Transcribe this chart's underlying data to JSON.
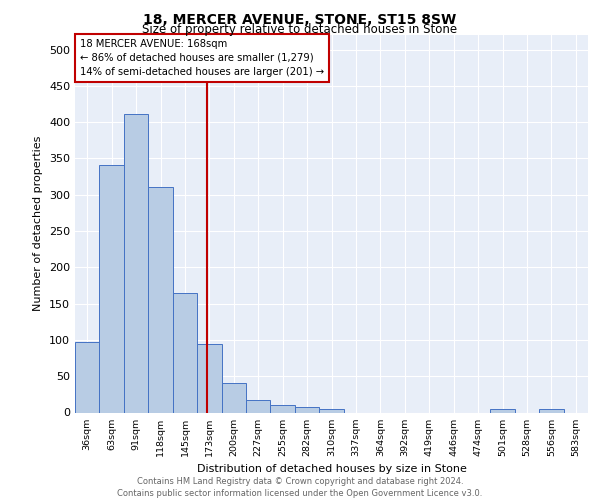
{
  "title1": "18, MERCER AVENUE, STONE, ST15 8SW",
  "title2": "Size of property relative to detached houses in Stone",
  "xlabel": "Distribution of detached houses by size in Stone",
  "ylabel": "Number of detached properties",
  "bin_labels": [
    "36sqm",
    "63sqm",
    "91sqm",
    "118sqm",
    "145sqm",
    "173sqm",
    "200sqm",
    "227sqm",
    "255sqm",
    "282sqm",
    "310sqm",
    "337sqm",
    "364sqm",
    "392sqm",
    "419sqm",
    "446sqm",
    "474sqm",
    "501sqm",
    "528sqm",
    "556sqm",
    "583sqm"
  ],
  "bar_heights": [
    97,
    341,
    411,
    310,
    164,
    94,
    41,
    17,
    10,
    8,
    5,
    0,
    0,
    0,
    0,
    0,
    0,
    5,
    0,
    5,
    0
  ],
  "bar_color": "#b8cce4",
  "bar_edge_color": "#4472c4",
  "property_label": "18 MERCER AVENUE: 168sqm",
  "annotation_line1": "← 86% of detached houses are smaller (1,279)",
  "annotation_line2": "14% of semi-detached houses are larger (201) →",
  "vline_color": "#c00000",
  "annotation_box_color": "#c00000",
  "vline_x_index": 4.889,
  "ylim": [
    0,
    520
  ],
  "yticks": [
    0,
    50,
    100,
    150,
    200,
    250,
    300,
    350,
    400,
    450,
    500
  ],
  "footer_line1": "Contains HM Land Registry data © Crown copyright and database right 2024.",
  "footer_line2": "Contains public sector information licensed under the Open Government Licence v3.0.",
  "background_color": "#e8eef8"
}
